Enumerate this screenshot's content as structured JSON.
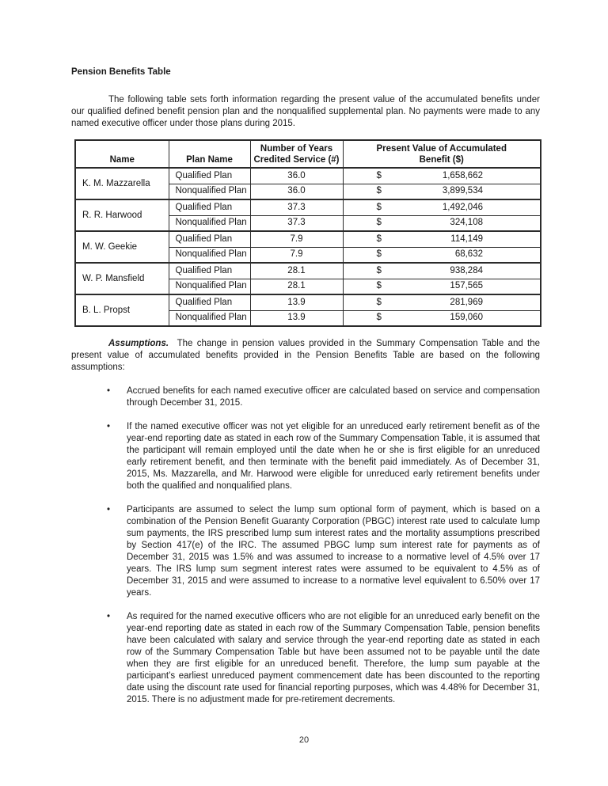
{
  "document": {
    "title": "Pension Benefits Table",
    "intro": "The following table sets forth information regarding the present value of the accumulated benefits under our qualified defined benefit pension plan and the nonqualified supplemental plan.  No payments were made to any named executive officer under those plans during 2015.",
    "page_number": "20"
  },
  "table": {
    "columns": [
      {
        "lines": [
          "Name"
        ]
      },
      {
        "lines": [
          "Plan Name"
        ]
      },
      {
        "lines": [
          "Number of Years",
          "Credited Service (#)"
        ]
      },
      {
        "lines": [
          "Present Value of Accumulated",
          "Benefit ($)"
        ]
      }
    ],
    "currency_symbol": "$",
    "rows": [
      {
        "name": "K. M. Mazzarella",
        "plans": [
          {
            "plan_name": "Qualified Plan",
            "years": "36.0",
            "value": "1,658,662"
          },
          {
            "plan_name": "Nonqualified Plan",
            "years": "36.0",
            "value": "3,899,534"
          }
        ]
      },
      {
        "name": "R. R. Harwood",
        "plans": [
          {
            "plan_name": "Qualified Plan",
            "years": "37.3",
            "value": "1,492,046"
          },
          {
            "plan_name": "Nonqualified Plan",
            "years": "37.3",
            "value": "324,108"
          }
        ]
      },
      {
        "name": "M. W. Geekie",
        "plans": [
          {
            "plan_name": "Qualified Plan",
            "years": "7.9",
            "value": "114,149"
          },
          {
            "plan_name": "Nonqualified Plan",
            "years": "7.9",
            "value": "68,632"
          }
        ]
      },
      {
        "name": "W. P. Mansfield",
        "plans": [
          {
            "plan_name": "Qualified Plan",
            "years": "28.1",
            "value": "938,284"
          },
          {
            "plan_name": "Nonqualified Plan",
            "years": "28.1",
            "value": "157,565"
          }
        ]
      },
      {
        "name": "B. L. Propst",
        "plans": [
          {
            "plan_name": "Qualified Plan",
            "years": "13.9",
            "value": "281,969"
          },
          {
            "plan_name": "Nonqualified Plan",
            "years": "13.9",
            "value": "159,060"
          }
        ]
      }
    ]
  },
  "assumptions": {
    "label": "Assumptions.",
    "text": "The change in pension values provided in the Summary Compensation Table and the present value of accumulated benefits provided in the Pension Benefits Table are based on the following assumptions:",
    "bullet_marker": "•",
    "bullets": [
      "Accrued benefits for each named executive officer are calculated based on service and compensation through December 31, 2015.",
      "If the named executive officer was not yet eligible for an unreduced early retirement benefit as of the year-end reporting date as stated in each row of the Summary Compensation Table, it is assumed that the participant will remain employed until the date when he or she is first eligible for an unreduced early retirement benefit, and then terminate with the benefit paid immediately.  As of December 31, 2015, Ms. Mazzarella, and Mr. Harwood were eligible for unreduced early retirement benefits under both the qualified and nonqualified plans.",
      "Participants are assumed to select the lump sum optional form of payment, which is based on a combination of the Pension Benefit Guaranty Corporation (PBGC) interest rate used to calculate lump sum payments, the IRS prescribed lump sum interest rates and the mortality assumptions prescribed by Section 417(e) of the IRC.  The assumed PBGC lump sum interest rate for payments as of December 31, 2015 was 1.5% and was assumed to increase to a normative level of 4.5% over 17 years.  The IRS lump sum segment interest rates were assumed to be equivalent to 4.5% as of December 31, 2015 and were assumed to increase to a normative level equivalent to 6.50% over 17 years.",
      "As required for the named executive officers who are not eligible for an unreduced early benefit on the year-end reporting date as stated in each row of the Summary Compensation Table, pension benefits have been calculated with salary and service through the year-end reporting date as stated in each row of the Summary Compensation Table but have been assumed not to be payable until the date when they are first eligible for an unreduced benefit. Therefore, the lump sum payable at the participant’s earliest unreduced payment commencement date has been discounted to the reporting date using the discount rate used for financial reporting purposes, which was 4.48% for December 31, 2015.  There is no adjustment made for pre-retirement decrements."
    ]
  }
}
